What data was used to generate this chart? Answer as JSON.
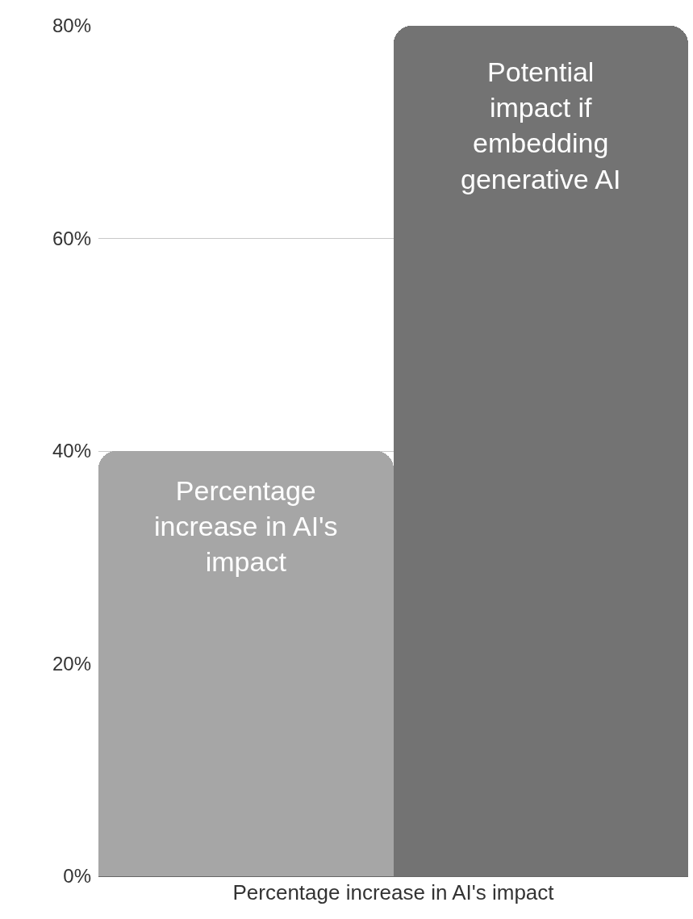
{
  "chart_data": {
    "type": "bar",
    "xlabel": "Percentage increase in AI's impact",
    "categories": [
      "Percentage increase in AI's impact",
      "Potential impact if embedding generative AI"
    ],
    "values": [
      40,
      80
    ],
    "colors": [
      "#a6a6a6",
      "#737373"
    ],
    "ylim": [
      0,
      80
    ],
    "yticks": [
      {
        "value": 0,
        "label": "0%"
      },
      {
        "value": 20,
        "label": "20%"
      },
      {
        "value": 40,
        "label": "40%"
      },
      {
        "value": 60,
        "label": "60%"
      },
      {
        "value": 80,
        "label": "80%"
      }
    ],
    "grid": "y",
    "legend": false
  }
}
